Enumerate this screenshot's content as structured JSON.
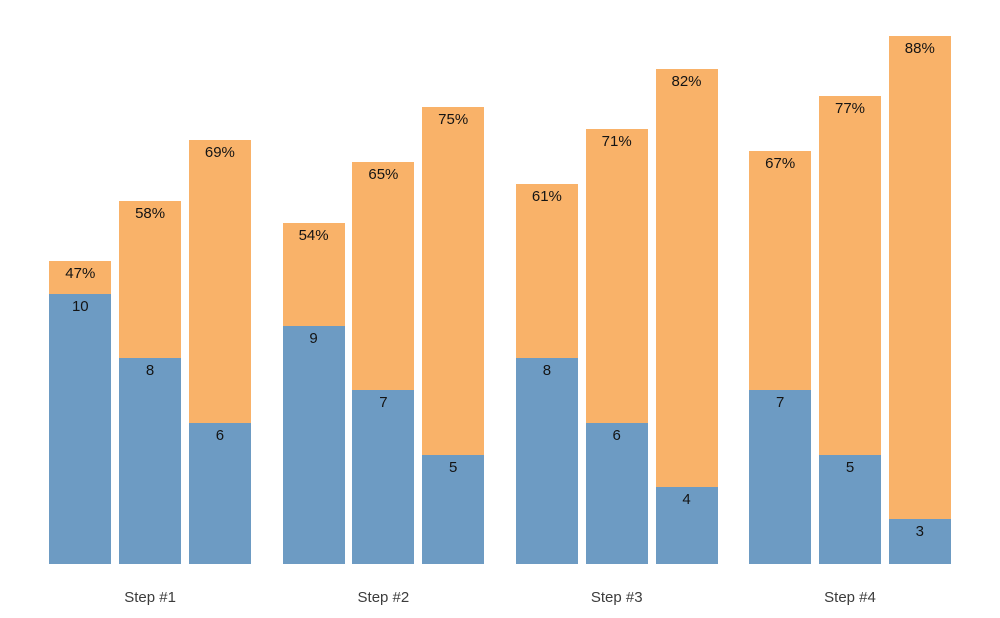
{
  "chart_data": {
    "type": "bar",
    "subtype": "grouped-dual-stacked",
    "title": "",
    "xlabel": "",
    "ylabel": "",
    "background": "#ffffff",
    "axes_visible": false,
    "grid": false,
    "legend": "none",
    "categories": [
      "Step #1",
      "Step #2",
      "Step #3",
      "Step #4"
    ],
    "bars_per_group": 3,
    "series_meta": {
      "count": {
        "name": "count",
        "color": "#6d9bc3",
        "label_position": "inside-top"
      },
      "percent": {
        "name": "percent",
        "color": "#f9b269",
        "label_suffix": "%",
        "label_position": "inside-top"
      }
    },
    "bars": [
      {
        "group": "Step #1",
        "count": 10,
        "percent": 47
      },
      {
        "group": "Step #1",
        "count": 8,
        "percent": 58
      },
      {
        "group": "Step #1",
        "count": 6,
        "percent": 69
      },
      {
        "group": "Step #2",
        "count": 9,
        "percent": 54
      },
      {
        "group": "Step #2",
        "count": 7,
        "percent": 65
      },
      {
        "group": "Step #2",
        "count": 5,
        "percent": 75
      },
      {
        "group": "Step #3",
        "count": 8,
        "percent": 61
      },
      {
        "group": "Step #3",
        "count": 6,
        "percent": 71
      },
      {
        "group": "Step #3",
        "count": 4,
        "percent": 82
      },
      {
        "group": "Step #4",
        "count": 7,
        "percent": 67
      },
      {
        "group": "Step #4",
        "count": 5,
        "percent": 77
      },
      {
        "group": "Step #4",
        "count": 3,
        "percent": 88
      }
    ],
    "label_colors": {
      "bar_labels": "#141414",
      "category_labels": "#3c3c3c"
    }
  }
}
